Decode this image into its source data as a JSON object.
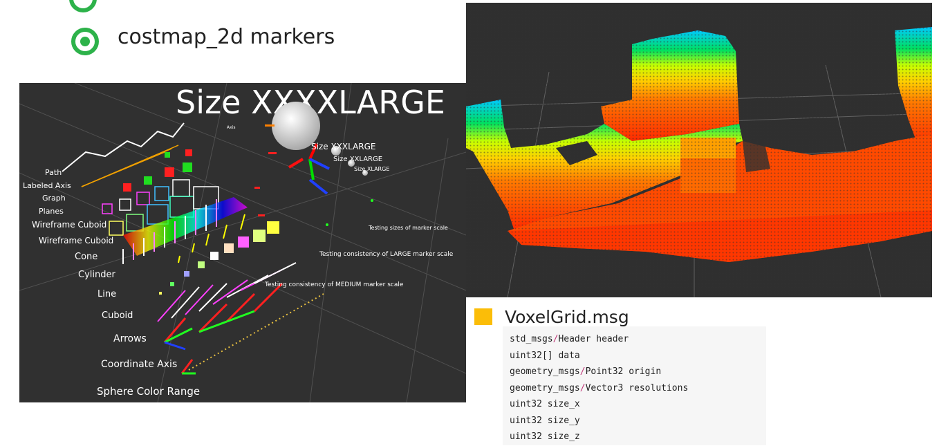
{
  "header": {
    "title": "costmap_2d markers"
  },
  "rviz_panel": {
    "big_title": "Size  XXXXLARGE",
    "size_labels": [
      "Size  XXXLARGE",
      "Size  XXLARGE",
      "Size  XLARGE"
    ],
    "marker_labels": [
      "Path",
      "Labeled  Axis",
      "Graph",
      "Planes",
      "Wireframe  Cuboid",
      "Wireframe  Cuboid",
      "Cone",
      "Cylinder",
      "Line",
      "Cuboid",
      "Arrows",
      "Coordinate  Axis",
      "Sphere  Color  Range"
    ],
    "test_labels": [
      "Testing  sizes  of  marker  scale",
      "Testing  consistency  of  LARGE  marker  scale",
      "Testing  consistency  of  MEDIUM  marker  scale"
    ],
    "axis_small_label": "Axis"
  },
  "voxel": {
    "title": "VoxelGrid.msg",
    "code_lines": [
      {
        "pre": "std_msgs",
        "sep": "/",
        "post": "Header header"
      },
      {
        "pre": "uint32[] data",
        "sep": "",
        "post": ""
      },
      {
        "pre": "geometry_msgs",
        "sep": "/",
        "post": "Point32 origin"
      },
      {
        "pre": "geometry_msgs",
        "sep": "/",
        "post": "Vector3 resolutions"
      },
      {
        "pre": "uint32 size_x",
        "sep": "",
        "post": ""
      },
      {
        "pre": "uint32 size_y",
        "sep": "",
        "post": ""
      },
      {
        "pre": "uint32 size_z",
        "sep": "",
        "post": ""
      }
    ]
  },
  "colors": {
    "accent_green": "#2db24a",
    "voxel_square": "#fbbd08",
    "code_separator": "#c0397a",
    "rviz_background": "#303030"
  }
}
